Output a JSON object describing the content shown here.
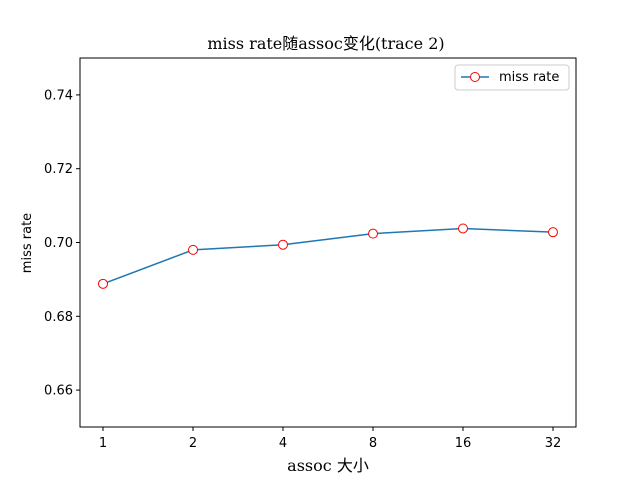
{
  "chart_data": {
    "type": "line",
    "title": "miss rate随assoc变化(trace 2)",
    "xlabel": "assoc 大小",
    "ylabel": "miss rate",
    "categories": [
      "1",
      "2",
      "4",
      "8",
      "16",
      "32"
    ],
    "series": [
      {
        "name": "miss rate",
        "values": [
          0.6888,
          0.698,
          0.6994,
          0.7024,
          0.7038,
          0.7028
        ]
      }
    ],
    "ylim": [
      0.65,
      0.75
    ],
    "yticks": [
      "0.66",
      "0.68",
      "0.70",
      "0.72",
      "0.74"
    ],
    "grid": false,
    "legend": "top-right",
    "colors": {
      "line": "#1f77b4",
      "marker_edge": "#ff0000",
      "marker_face": "#ffffff"
    }
  }
}
